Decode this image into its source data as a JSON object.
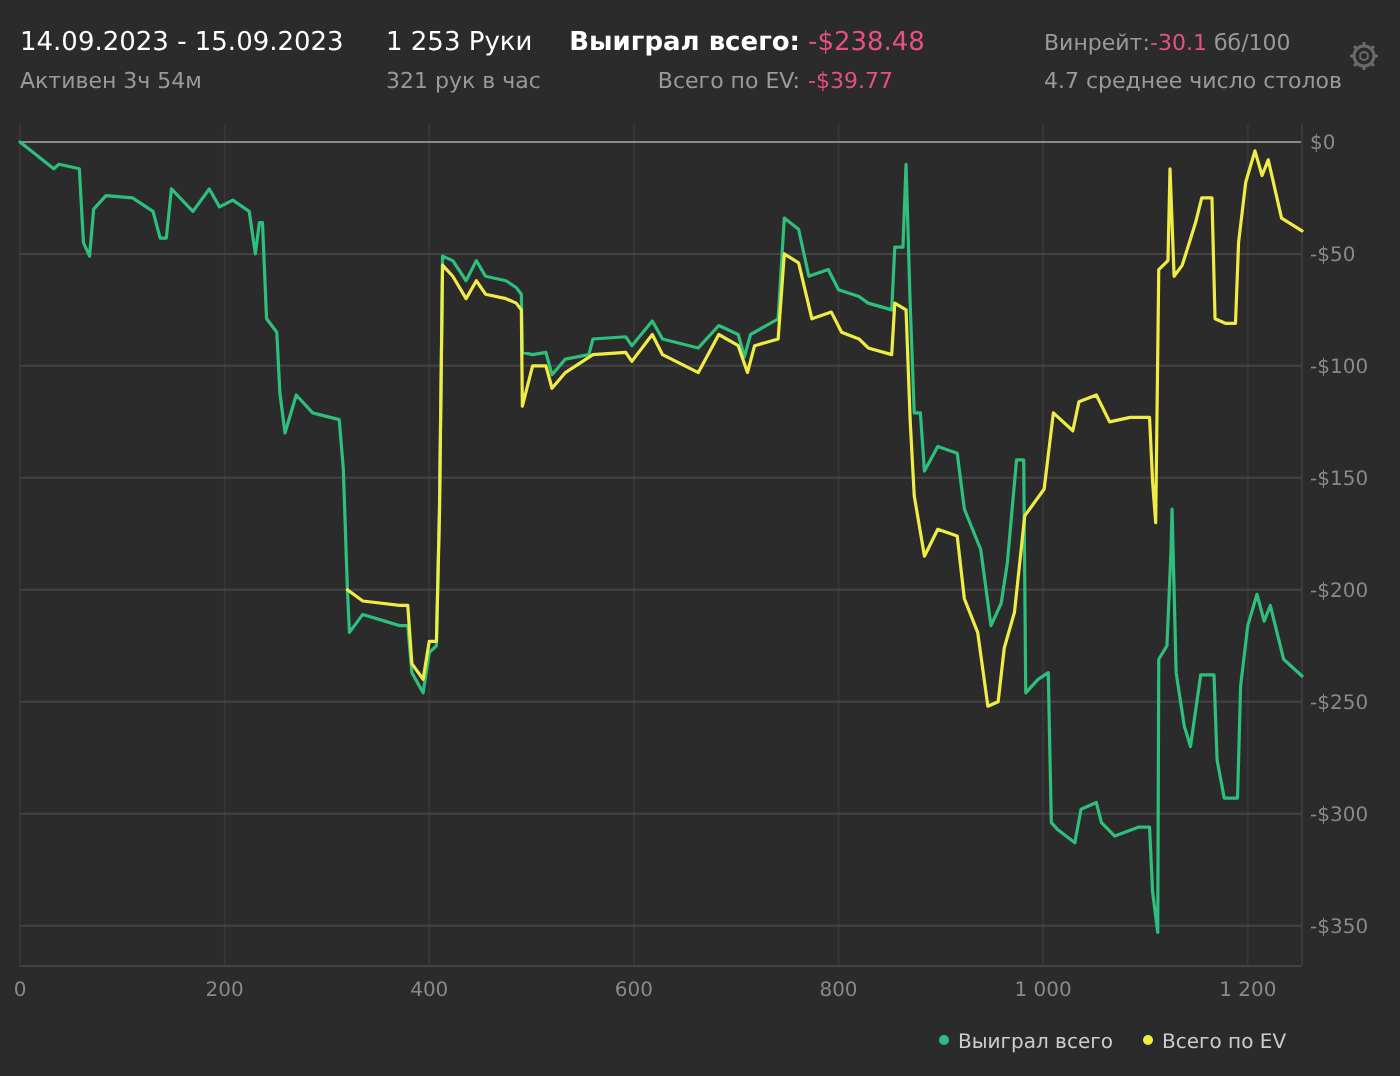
{
  "chart_data": {
    "type": "line",
    "title": "14.09.2023 - 15.09.2023",
    "annotations": [
      "Активен 3ч 54м",
      "1 253 Руки",
      "321 рук в час",
      "Выиграл всего:",
      "-$238.48",
      "Всего по EV:",
      "-$39.77",
      "Винрейт:",
      "-30.1",
      "бб/100",
      "4.7 среднее число столов"
    ],
    "series": [
      {
        "name": "Выиграл всего",
        "color": "#2ebf7c",
        "x": [
          0,
          33,
          38,
          58,
          62,
          68,
          72,
          84,
          110,
          130,
          137,
          143,
          148,
          169,
          185,
          195,
          208,
          224,
          230,
          234,
          237,
          241,
          251,
          254,
          259,
          270,
          286,
          312,
          316,
          320,
          322,
          335,
          371,
          379,
          383,
          394,
          400,
          407,
          410,
          413,
          423,
          436,
          446,
          455,
          475,
          485,
          490,
          491,
          501,
          514,
          520,
          533,
          556,
          560,
          592,
          598,
          618,
          628,
          663,
          683,
          702,
          708,
          714,
          741,
          747,
          761,
          771,
          790,
          800,
          820,
          829,
          852,
          855,
          863,
          866,
          870,
          874,
          880,
          884,
          897,
          916,
          923,
          939,
          949,
          959,
          965,
          974,
          981,
          983,
          995,
          1005,
          1008,
          1014,
          1031,
          1037,
          1052,
          1057,
          1070,
          1093,
          1104,
          1107,
          1112,
          1113,
          1121,
          1125,
          1126,
          1130,
          1138,
          1144,
          1154,
          1167,
          1170,
          1177,
          1190,
          1193,
          1200,
          1209,
          1216,
          1222,
          1235,
          1253
        ],
        "values": [
          0,
          -12,
          -10,
          -12,
          -45,
          -51,
          -30,
          -24,
          -25,
          -31,
          -43,
          -43,
          -21,
          -31,
          -21,
          -29,
          -26,
          -31,
          -50,
          -36,
          -36,
          -79,
          -85,
          -112,
          -130,
          -113,
          -121,
          -124,
          -146,
          -200,
          -219,
          -211,
          -216,
          -216,
          -237,
          -246,
          -228,
          -225,
          -162,
          -51,
          -53,
          -62,
          -53,
          -60,
          -62,
          -65,
          -68,
          -94,
          -95,
          -94,
          -104,
          -97,
          -95,
          -88,
          -87,
          -91,
          -80,
          -88,
          -92,
          -82,
          -86,
          -96,
          -86,
          -79,
          -34,
          -39,
          -60,
          -57,
          -66,
          -69,
          -72,
          -75,
          -47,
          -47,
          -10,
          -72,
          -121,
          -121,
          -147,
          -136,
          -139,
          -164,
          -182,
          -216,
          -206,
          -188,
          -142,
          -142,
          -246,
          -240,
          -237,
          -304,
          -307,
          -313,
          -298,
          -295,
          -304,
          -310,
          -306,
          -306,
          -335,
          -353,
          -231,
          -225,
          -182,
          -164,
          -237,
          -261,
          -270,
          -238,
          -238,
          -276,
          -293,
          -293,
          -243,
          -216,
          -202,
          -214,
          -207,
          -231,
          -238.48
        ]
      },
      {
        "name": "Всего по EV",
        "color": "#f0ec46",
        "x": [
          320,
          335,
          371,
          379,
          383,
          394,
          400,
          407,
          410,
          413,
          423,
          436,
          446,
          455,
          475,
          485,
          490,
          491,
          501,
          514,
          520,
          533,
          560,
          592,
          598,
          618,
          628,
          663,
          683,
          702,
          711,
          718,
          741,
          747,
          761,
          774,
          793,
          803,
          820,
          829,
          852,
          855,
          866,
          870,
          874,
          884,
          897,
          916,
          923,
          936,
          946,
          956,
          962,
          972,
          982,
          1001,
          1010,
          1029,
          1035,
          1052,
          1065,
          1085,
          1104,
          1107,
          1110,
          1113,
          1122,
          1124,
          1128,
          1136,
          1149,
          1155,
          1165,
          1168,
          1178,
          1188,
          1191,
          1198,
          1207,
          1214,
          1220,
          1233,
          1253
        ],
        "values": [
          -200,
          -205,
          -207,
          -207,
          -233,
          -240,
          -223,
          -223,
          -166,
          -55,
          -60,
          -70,
          -62,
          -68,
          -70,
          -72,
          -75,
          -118,
          -100,
          -100,
          -110,
          -103,
          -95,
          -94,
          -98,
          -86,
          -95,
          -103,
          -86,
          -91,
          -103,
          -91,
          -88,
          -50,
          -54,
          -79,
          -76,
          -85,
          -88,
          -92,
          -95,
          -72,
          -75,
          -124,
          -158,
          -185,
          -173,
          -176,
          -204,
          -219,
          -252,
          -250,
          -226,
          -210,
          -167,
          -155,
          -121,
          -129,
          -116,
          -113,
          -125,
          -123,
          -123,
          -152,
          -170,
          -57,
          -53,
          -12,
          -60,
          -55,
          -36,
          -25,
          -25,
          -79,
          -81,
          -81,
          -45,
          -18,
          -4,
          -15,
          -8,
          -34,
          -39.77
        ]
      }
    ],
    "xlim": [
      0,
      1253
    ],
    "xticks": [
      0,
      200,
      400,
      600,
      800,
      {
        "value": 1000,
        "label": "1 000"
      },
      {
        "value": 1200,
        "label": "1 200"
      }
    ],
    "ylim": [
      -368,
      8
    ],
    "yticks": [
      {
        "value": 0,
        "label": "$0"
      },
      {
        "value": -50,
        "label": "-$50"
      },
      {
        "value": -100,
        "label": "-$100"
      },
      {
        "value": -150,
        "label": "-$150"
      },
      {
        "value": -200,
        "label": "-$200"
      },
      {
        "value": -250,
        "label": "-$250"
      },
      {
        "value": -300,
        "label": "-$300"
      },
      {
        "value": -350,
        "label": "-$350"
      }
    ],
    "grid": true,
    "legend": "bottom right"
  }
}
